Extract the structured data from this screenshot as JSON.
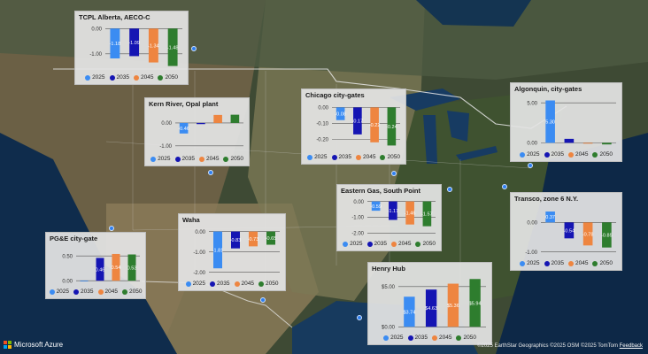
{
  "map": {
    "branding": "Microsoft Azure",
    "copyright": "©2025 EarthStar Geographics  ©2025 OSM  ©2025 TomTom",
    "feedback": "Feedback"
  },
  "colors": {
    "2025": "#3b8cf2",
    "2035": "#1515b3",
    "2045": "#ee8540",
    "2050": "#2e7d2e"
  },
  "legend_years": [
    "2025",
    "2035",
    "2045",
    "2050"
  ],
  "chart_data": [
    {
      "type": "bar",
      "title": "TCPL Alberta, AECO-C",
      "categories": [
        "2025",
        "2035",
        "2045",
        "2050"
      ],
      "values": [
        -1.18,
        -1.09,
        -1.34,
        -1.48
      ],
      "value_labels": [
        "-1.18",
        "-1.09",
        "-1.34",
        "-1.48"
      ],
      "ticks": [
        "0.00",
        "-1.00"
      ],
      "tick_values": [
        0,
        -1
      ],
      "ylim": [
        -1.6,
        0.15
      ]
    },
    {
      "type": "bar",
      "title": "Kern River, Opal plant",
      "categories": [
        "2025",
        "2035",
        "2045",
        "2050"
      ],
      "values": [
        -0.46,
        -0.05,
        0.35,
        0.36
      ],
      "value_labels": [
        "-0.46",
        "",
        "",
        ""
      ],
      "ticks": [
        "0.00",
        "-1.00"
      ],
      "tick_values": [
        0,
        -1
      ],
      "ylim": [
        -1.2,
        0.5
      ]
    },
    {
      "type": "bar",
      "title": "Chicago city-gates",
      "categories": [
        "2025",
        "2035",
        "2045",
        "2050"
      ],
      "values": [
        -0.08,
        -0.17,
        -0.22,
        -0.24
      ],
      "value_labels": [
        "-0.08",
        "-0.17",
        "-0.22",
        "-0.24"
      ],
      "ticks": [
        "0.00",
        "-0.10",
        "-0.20"
      ],
      "tick_values": [
        0,
        -0.1,
        -0.2
      ],
      "ylim": [
        -0.26,
        0.03
      ]
    },
    {
      "type": "bar",
      "title": "Algonquin, city-gates",
      "categories": [
        "2025",
        "2035",
        "2045",
        "2050"
      ],
      "values": [
        5.3,
        0.5,
        -0.1,
        -0.2
      ],
      "value_labels": [
        "5.30",
        "",
        "",
        ""
      ],
      "ticks": [
        "5.00",
        "0.00"
      ],
      "tick_values": [
        5,
        0
      ],
      "ylim": [
        -0.4,
        5.8
      ]
    },
    {
      "type": "bar",
      "title": "Eastern Gas, South Point",
      "categories": [
        "2025",
        "2035",
        "2045",
        "2050"
      ],
      "values": [
        -0.59,
        -1.17,
        -1.46,
        -1.57
      ],
      "value_labels": [
        "-0.59",
        "-1.17",
        "-1.46",
        "-1.57"
      ],
      "ticks": [
        "0.00",
        "-1.00",
        "-2.00"
      ],
      "tick_values": [
        0,
        -1,
        -2
      ],
      "ylim": [
        -2.15,
        0.2
      ]
    },
    {
      "type": "bar",
      "title": "Transco, zone 6 N.Y.",
      "categories": [
        "2025",
        "2035",
        "2045",
        "2050"
      ],
      "values": [
        0.37,
        -0.54,
        -0.78,
        -0.85
      ],
      "value_labels": [
        "0.37",
        "-0.54",
        "-0.78",
        "-0.85"
      ],
      "ticks": [
        "0.00",
        "-1.00"
      ],
      "tick_values": [
        0,
        -1
      ],
      "ylim": [
        -1.1,
        0.55
      ]
    },
    {
      "type": "bar",
      "title": "PG&E city-gate",
      "categories": [
        "2025",
        "2035",
        "2045",
        "2050"
      ],
      "values": [
        0.0,
        0.46,
        0.54,
        0.53
      ],
      "value_labels": [
        "",
        "0.46",
        "0.54",
        "0.53"
      ],
      "ticks": [
        "0.50",
        "0.00"
      ],
      "tick_values": [
        0.5,
        0
      ],
      "ylim": [
        -0.05,
        0.7
      ]
    },
    {
      "type": "bar",
      "title": "Waha",
      "categories": [
        "2025",
        "2035",
        "2045",
        "2050"
      ],
      "values": [
        -1.81,
        -0.83,
        -0.73,
        -0.65
      ],
      "value_labels": [
        "-1.81",
        "-0.83",
        "-0.73",
        "-0.65"
      ],
      "ticks": [
        "0.00",
        "-1.00",
        "-2.00"
      ],
      "tick_values": [
        0,
        -1,
        -2
      ],
      "ylim": [
        -2.15,
        0.2
      ]
    },
    {
      "type": "bar",
      "title": "Henry Hub",
      "categories": [
        "2025",
        "2035",
        "2045",
        "2050"
      ],
      "values": [
        3.74,
        4.63,
        5.36,
        5.94
      ],
      "value_labels": [
        "$3.74",
        "$4.63",
        "$5.36",
        "$5.94"
      ],
      "ticks": [
        "$5.00",
        "$0.00"
      ],
      "tick_values": [
        5,
        0
      ],
      "ylim": [
        -0.3,
        6.3
      ]
    }
  ]
}
